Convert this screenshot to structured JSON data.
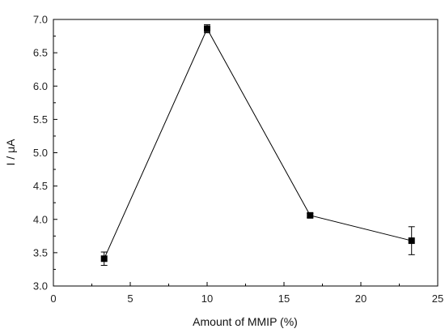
{
  "chart_data": {
    "type": "line",
    "title": "",
    "xlabel": "Amount of MMIP (%)",
    "ylabel": "I / μA",
    "xlim": [
      0,
      25
    ],
    "ylim": [
      3.0,
      7.0
    ],
    "x_ticks": [
      0,
      5,
      10,
      15,
      20,
      25
    ],
    "x_tick_labels": [
      "0",
      "5",
      "10",
      "15",
      "20",
      "25"
    ],
    "y_ticks": [
      3.0,
      3.5,
      4.0,
      4.5,
      5.0,
      5.5,
      6.0,
      6.5,
      7.0
    ],
    "y_tick_labels": [
      "3.0",
      "3.5",
      "4.0",
      "4.5",
      "5.0",
      "5.5",
      "6.0",
      "6.5",
      "7.0"
    ],
    "grid": false,
    "legend": "none",
    "marker": "square",
    "color": "#000000",
    "series": [
      {
        "x": [
          3.3,
          10.0,
          16.7,
          23.3
        ],
        "y": [
          3.41,
          6.86,
          4.06,
          3.68
        ],
        "error": [
          0.1,
          0.06,
          0.03,
          0.21
        ]
      }
    ]
  }
}
